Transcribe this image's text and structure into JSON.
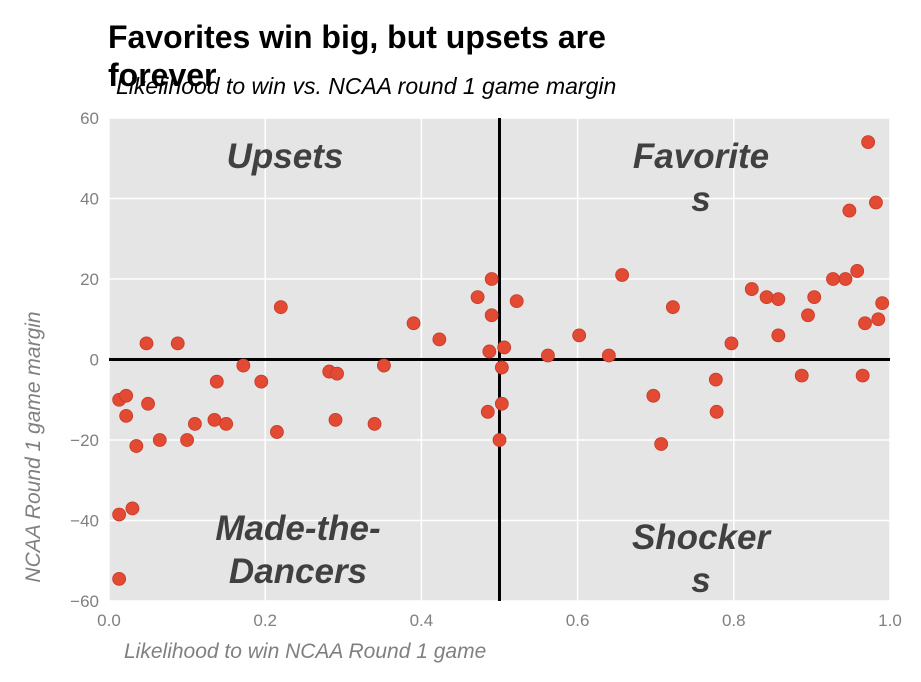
{
  "chart_data": {
    "type": "scatter",
    "title": "Favorites win big, but upsets are forever",
    "subtitle": "Likelihood to win vs. NCAA round 1 game margin",
    "xlabel": "Likelihood to win NCAA Round 1 game",
    "ylabel": "NCAA Round 1 game margin",
    "xlim": [
      0.0,
      1.0
    ],
    "ylim": [
      -60,
      60
    ],
    "xticks": [
      "0.0",
      "0.2",
      "0.4",
      "0.6",
      "0.8",
      "1.0"
    ],
    "yticks": [
      "−60",
      "−40",
      "−20",
      "0",
      "20",
      "40",
      "60"
    ],
    "grid": true,
    "reference_lines": {
      "x": 0.5,
      "y": 0
    },
    "quadrant_labels": {
      "upsets": "Upsets",
      "favorites": "Favorite s",
      "made_the_dancers": "Made-the-Dancers",
      "shockers": "Shocker s"
    },
    "colors": {
      "points": "#e24a33",
      "plot_background": "#e5e5e5",
      "grid": "#ffffff",
      "reference_lines": "#000000",
      "quadrant_text": "#404040",
      "tick_text": "#808080"
    },
    "points": [
      {
        "x": 0.013,
        "y": -54.5
      },
      {
        "x": 0.013,
        "y": -38.5
      },
      {
        "x": 0.03,
        "y": -37.0
      },
      {
        "x": 0.035,
        "y": -21.5
      },
      {
        "x": 0.065,
        "y": -20.0
      },
      {
        "x": 0.1,
        "y": -20.0
      },
      {
        "x": 0.11,
        "y": -16.0
      },
      {
        "x": 0.135,
        "y": -15.0
      },
      {
        "x": 0.15,
        "y": -16.0
      },
      {
        "x": 0.215,
        "y": -18.0
      },
      {
        "x": 0.29,
        "y": -15.0
      },
      {
        "x": 0.34,
        "y": -16.0
      },
      {
        "x": 0.022,
        "y": -14.0
      },
      {
        "x": 0.05,
        "y": -11.0
      },
      {
        "x": 0.013,
        "y": -10.0
      },
      {
        "x": 0.022,
        "y": -9.0
      },
      {
        "x": 0.138,
        "y": -5.5
      },
      {
        "x": 0.195,
        "y": -5.5
      },
      {
        "x": 0.172,
        "y": -1.5
      },
      {
        "x": 0.282,
        "y": -3.0
      },
      {
        "x": 0.292,
        "y": -3.5
      },
      {
        "x": 0.352,
        "y": -1.5
      },
      {
        "x": 0.048,
        "y": 4.0
      },
      {
        "x": 0.088,
        "y": 4.0
      },
      {
        "x": 0.22,
        "y": 13.0
      },
      {
        "x": 0.39,
        "y": 9.0
      },
      {
        "x": 0.423,
        "y": 5.0
      },
      {
        "x": 0.472,
        "y": 15.5
      },
      {
        "x": 0.49,
        "y": 20.0
      },
      {
        "x": 0.49,
        "y": 11.0
      },
      {
        "x": 0.487,
        "y": 2.0
      },
      {
        "x": 0.506,
        "y": 3.0
      },
      {
        "x": 0.503,
        "y": -2.0
      },
      {
        "x": 0.485,
        "y": -13.0
      },
      {
        "x": 0.503,
        "y": -11.0
      },
      {
        "x": 0.5,
        "y": -20.0
      },
      {
        "x": 0.522,
        "y": 14.5
      },
      {
        "x": 0.562,
        "y": 1.0
      },
      {
        "x": 0.602,
        "y": 6.0
      },
      {
        "x": 0.64,
        "y": 1.0
      },
      {
        "x": 0.657,
        "y": 21.0
      },
      {
        "x": 0.697,
        "y": -9.0
      },
      {
        "x": 0.707,
        "y": -21.0
      },
      {
        "x": 0.722,
        "y": 13.0
      },
      {
        "x": 0.777,
        "y": -5.0
      },
      {
        "x": 0.778,
        "y": -13.0
      },
      {
        "x": 0.797,
        "y": 4.0
      },
      {
        "x": 0.823,
        "y": 17.5
      },
      {
        "x": 0.842,
        "y": 15.5
      },
      {
        "x": 0.857,
        "y": 15.0
      },
      {
        "x": 0.857,
        "y": 6.0
      },
      {
        "x": 0.887,
        "y": -4.0
      },
      {
        "x": 0.895,
        "y": 11.0
      },
      {
        "x": 0.903,
        "y": 15.5
      },
      {
        "x": 0.927,
        "y": 20.0
      },
      {
        "x": 0.943,
        "y": 20.0
      },
      {
        "x": 0.948,
        "y": 37.0
      },
      {
        "x": 0.958,
        "y": 22.0
      },
      {
        "x": 0.965,
        "y": -4.0
      },
      {
        "x": 0.968,
        "y": 9.0
      },
      {
        "x": 0.972,
        "y": 54.0
      },
      {
        "x": 0.982,
        "y": 39.0
      },
      {
        "x": 0.985,
        "y": 10.0
      },
      {
        "x": 0.99,
        "y": 14.0
      }
    ]
  }
}
